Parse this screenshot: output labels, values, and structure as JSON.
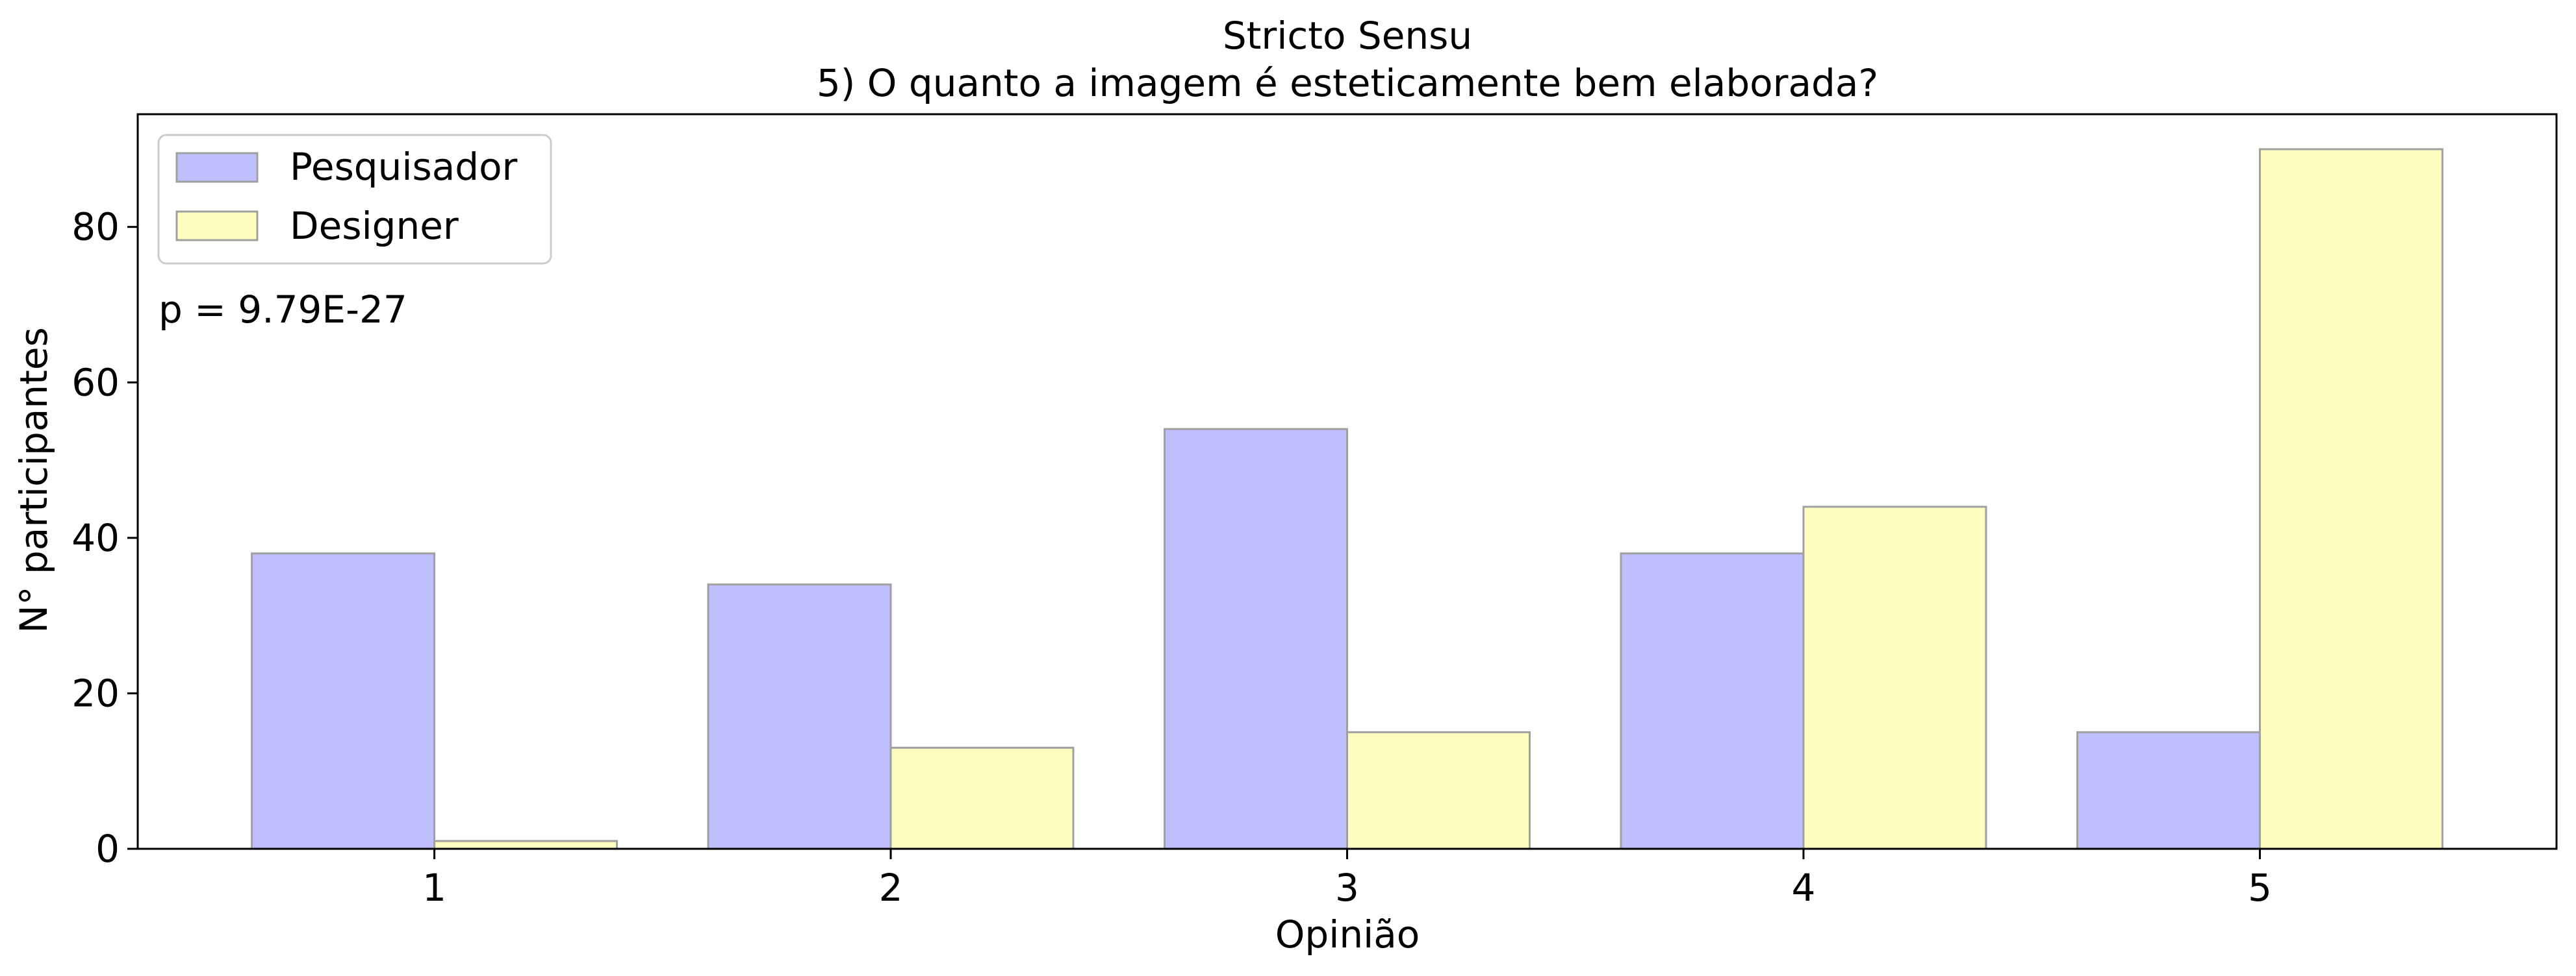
{
  "chart_data": {
    "type": "bar",
    "title": "Stricto Sensu",
    "subtitle": "5) O quanto a imagem é esteticamente bem elaborada?",
    "xlabel": "Opinião",
    "ylabel": "N° participantes",
    "categories": [
      "1",
      "2",
      "3",
      "4",
      "5"
    ],
    "series": [
      {
        "name": "Pesquisador",
        "color": "#bfbffe",
        "values": [
          38,
          34,
          54,
          38,
          15
        ]
      },
      {
        "name": "Designer",
        "color": "#ffffbf",
        "values": [
          1,
          13,
          15,
          44,
          90
        ]
      }
    ],
    "ylim": [
      0,
      94.5
    ],
    "yticks": [
      0,
      20,
      40,
      60,
      80
    ],
    "grid": false,
    "legend_position": "upper-left",
    "annotation": "p = 9.79E-27",
    "bar_edge_color": "#a0a0a0"
  }
}
